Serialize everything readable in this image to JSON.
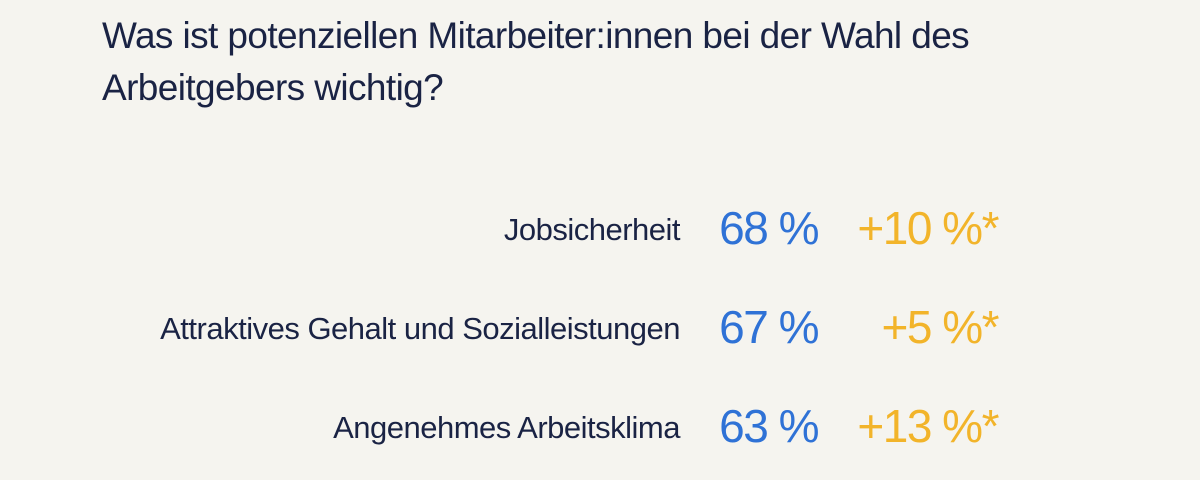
{
  "colors": {
    "background": "#f5f4ef",
    "text": "#1a2344",
    "value": "#2f72d6",
    "change": "#f2b42a"
  },
  "title": "Was ist potenziellen Mitarbeiter:innen bei der Wahl des Arbeitgebers wichtig?",
  "chart_data": {
    "type": "table",
    "title": "Was ist potenziellen Mitarbeiter:innen bei der Wahl des Arbeitgebers wichtig?",
    "rows": [
      {
        "label": "Jobsicherheit",
        "value": 68,
        "value_text": "68 %",
        "change": 10,
        "change_text": "+10 %*"
      },
      {
        "label": "Attraktives Gehalt und Sozialleistungen",
        "value": 67,
        "value_text": "67 %",
        "change": 5,
        "change_text": "+5 %*"
      },
      {
        "label": "Angenehmes Arbeitsklima",
        "value": 63,
        "value_text": "63 %",
        "change": 13,
        "change_text": "+13 %*"
      }
    ]
  }
}
